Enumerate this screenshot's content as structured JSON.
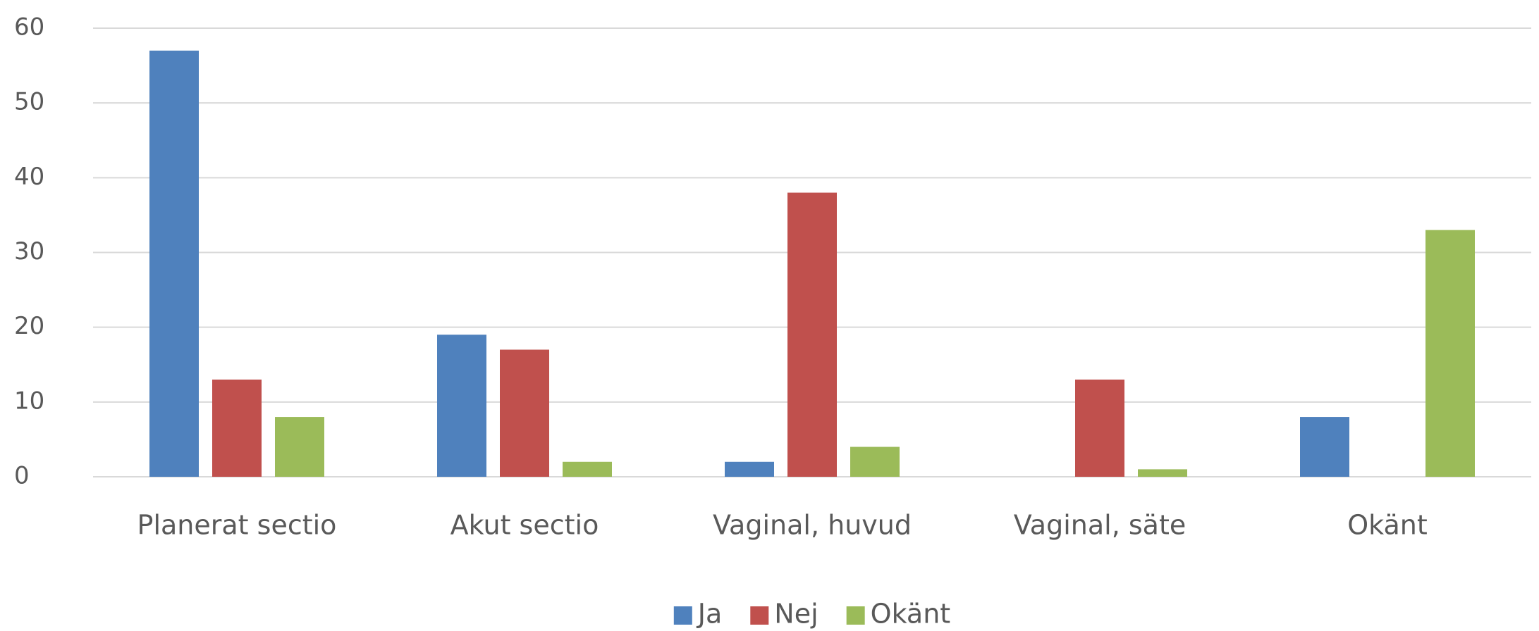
{
  "chart_data": {
    "type": "bar",
    "categories": [
      "Planerat sectio",
      "Akut sectio",
      "Vaginal, huvud",
      "Vaginal, säte",
      "Okänt"
    ],
    "series": [
      {
        "name": "Ja",
        "color": "#4f81bd",
        "values": [
          57,
          19,
          2,
          0,
          8
        ]
      },
      {
        "name": "Nej",
        "color": "#c0504d",
        "values": [
          13,
          17,
          38,
          13,
          0
        ]
      },
      {
        "name": "Okänt",
        "color": "#9bbb59",
        "values": [
          8,
          2,
          4,
          1,
          33
        ]
      }
    ],
    "ylim": [
      0,
      60
    ],
    "yticks": [
      0,
      10,
      20,
      30,
      40,
      50,
      60
    ],
    "grid": true,
    "legend": "bottom"
  }
}
